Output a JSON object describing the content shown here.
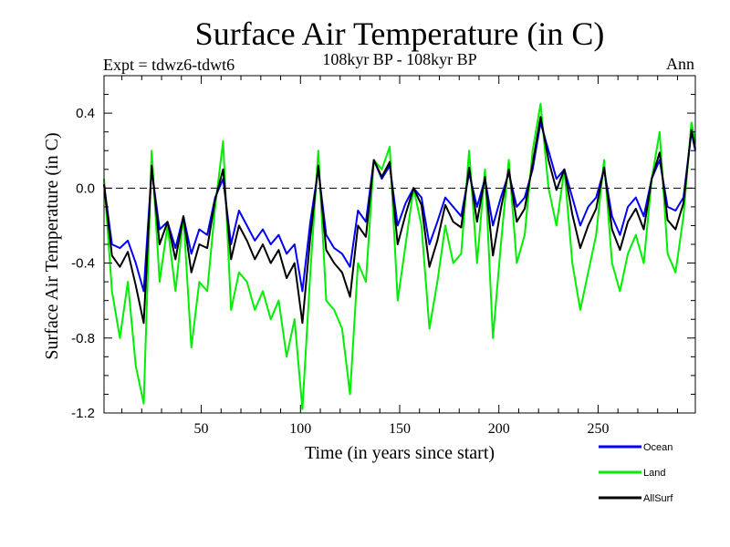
{
  "page": {
    "title": "Surface Air Temperature (in C)",
    "subtitle": "108kyr BP - 108kyr BP",
    "experiment": "Expt = tdwz6-tdwt6",
    "season": "Ann"
  },
  "chart_data": {
    "type": "line",
    "title": "Surface Air Temperature (in C)",
    "subtitle": "108kyr BP - 108kyr BP",
    "xlabel": "Time (in years since start)",
    "ylabel": "Surface Air Temperature (in C)",
    "xlim": [
      1,
      299
    ],
    "ylim": [
      -1.2,
      0.6
    ],
    "xticks": [
      50,
      100,
      150,
      200,
      250
    ],
    "xtick_labels": [
      "50",
      "100",
      "150",
      "200",
      "250"
    ],
    "xminor_step": 10,
    "yticks": [
      -1.2,
      -0.8,
      -0.4,
      0.0,
      0.4
    ],
    "ytick_labels": [
      "-1.2",
      "-0.8",
      "-0.4",
      "0.0",
      "0.4"
    ],
    "yminor_step": 0.1,
    "reference_line": 0.0,
    "grid": false,
    "legend_position": "bottom-right, below plot",
    "x": [
      1,
      5,
      9,
      13,
      17,
      21,
      25,
      29,
      33,
      37,
      41,
      45,
      49,
      53,
      57,
      61,
      65,
      69,
      73,
      77,
      81,
      85,
      89,
      93,
      97,
      101,
      105,
      109,
      113,
      117,
      121,
      125,
      129,
      133,
      137,
      141,
      145,
      149,
      153,
      157,
      161,
      165,
      169,
      173,
      177,
      181,
      185,
      189,
      193,
      197,
      201,
      205,
      209,
      213,
      217,
      221,
      225,
      229,
      233,
      237,
      241,
      245,
      249,
      253,
      257,
      261,
      265,
      269,
      273,
      277,
      281,
      285,
      289,
      293,
      297,
      299
    ],
    "series": [
      {
        "name": "Ocean",
        "color": "#0000ff",
        "values": [
          0.02,
          -0.3,
          -0.32,
          -0.28,
          -0.4,
          -0.55,
          0.1,
          -0.22,
          -0.18,
          -0.32,
          -0.15,
          -0.35,
          -0.22,
          -0.25,
          -0.05,
          0.05,
          -0.3,
          -0.12,
          -0.2,
          -0.28,
          -0.22,
          -0.3,
          -0.25,
          -0.35,
          -0.3,
          -0.55,
          -0.18,
          0.1,
          -0.25,
          -0.32,
          -0.35,
          -0.42,
          -0.12,
          -0.18,
          0.15,
          0.05,
          0.12,
          -0.2,
          -0.08,
          0.0,
          -0.05,
          -0.3,
          -0.18,
          -0.05,
          -0.1,
          -0.15,
          0.08,
          -0.1,
          0.05,
          -0.2,
          -0.05,
          0.08,
          -0.1,
          -0.05,
          0.1,
          0.35,
          0.2,
          0.05,
          0.1,
          -0.05,
          -0.2,
          -0.1,
          -0.05,
          0.1,
          -0.15,
          -0.25,
          -0.1,
          -0.05,
          -0.15,
          0.05,
          0.15,
          -0.1,
          -0.12,
          -0.05,
          0.3,
          0.2
        ]
      },
      {
        "name": "Land",
        "color": "#00ee00",
        "values": [
          0.05,
          -0.55,
          -0.8,
          -0.5,
          -0.95,
          -1.15,
          0.2,
          -0.5,
          -0.2,
          -0.55,
          -0.15,
          -0.85,
          -0.5,
          -0.55,
          -0.1,
          0.25,
          -0.65,
          -0.45,
          -0.5,
          -0.65,
          -0.55,
          -0.7,
          -0.6,
          -0.9,
          -0.7,
          -1.18,
          -0.45,
          0.2,
          -0.6,
          -0.65,
          -0.75,
          -1.1,
          -0.4,
          -0.5,
          0.15,
          0.1,
          0.22,
          -0.6,
          -0.3,
          0.0,
          -0.2,
          -0.75,
          -0.5,
          -0.2,
          -0.4,
          -0.35,
          0.2,
          -0.4,
          0.1,
          -0.8,
          -0.3,
          0.15,
          -0.4,
          -0.25,
          0.2,
          0.45,
          0.0,
          -0.2,
          0.1,
          -0.4,
          -0.65,
          -0.45,
          -0.25,
          0.15,
          -0.4,
          -0.55,
          -0.35,
          -0.25,
          -0.4,
          0.05,
          0.3,
          -0.35,
          -0.45,
          -0.15,
          0.35,
          0.25
        ]
      },
      {
        "name": "AllSurf",
        "color": "#000000",
        "values": [
          0.02,
          -0.36,
          -0.42,
          -0.34,
          -0.52,
          -0.72,
          0.12,
          -0.3,
          -0.18,
          -0.38,
          -0.15,
          -0.45,
          -0.3,
          -0.32,
          -0.06,
          0.1,
          -0.38,
          -0.2,
          -0.28,
          -0.38,
          -0.3,
          -0.4,
          -0.33,
          -0.48,
          -0.4,
          -0.72,
          -0.26,
          0.12,
          -0.33,
          -0.4,
          -0.45,
          -0.58,
          -0.2,
          -0.26,
          0.15,
          0.06,
          0.14,
          -0.3,
          -0.14,
          0.0,
          -0.09,
          -0.42,
          -0.28,
          -0.09,
          -0.18,
          -0.21,
          0.11,
          -0.18,
          0.06,
          -0.36,
          -0.11,
          0.1,
          -0.18,
          -0.11,
          0.13,
          0.38,
          0.15,
          -0.01,
          0.1,
          -0.14,
          -0.32,
          -0.2,
          -0.11,
          0.11,
          -0.22,
          -0.33,
          -0.18,
          -0.11,
          -0.22,
          0.05,
          0.19,
          -0.17,
          -0.22,
          -0.08,
          0.31,
          0.21
        ]
      }
    ]
  }
}
